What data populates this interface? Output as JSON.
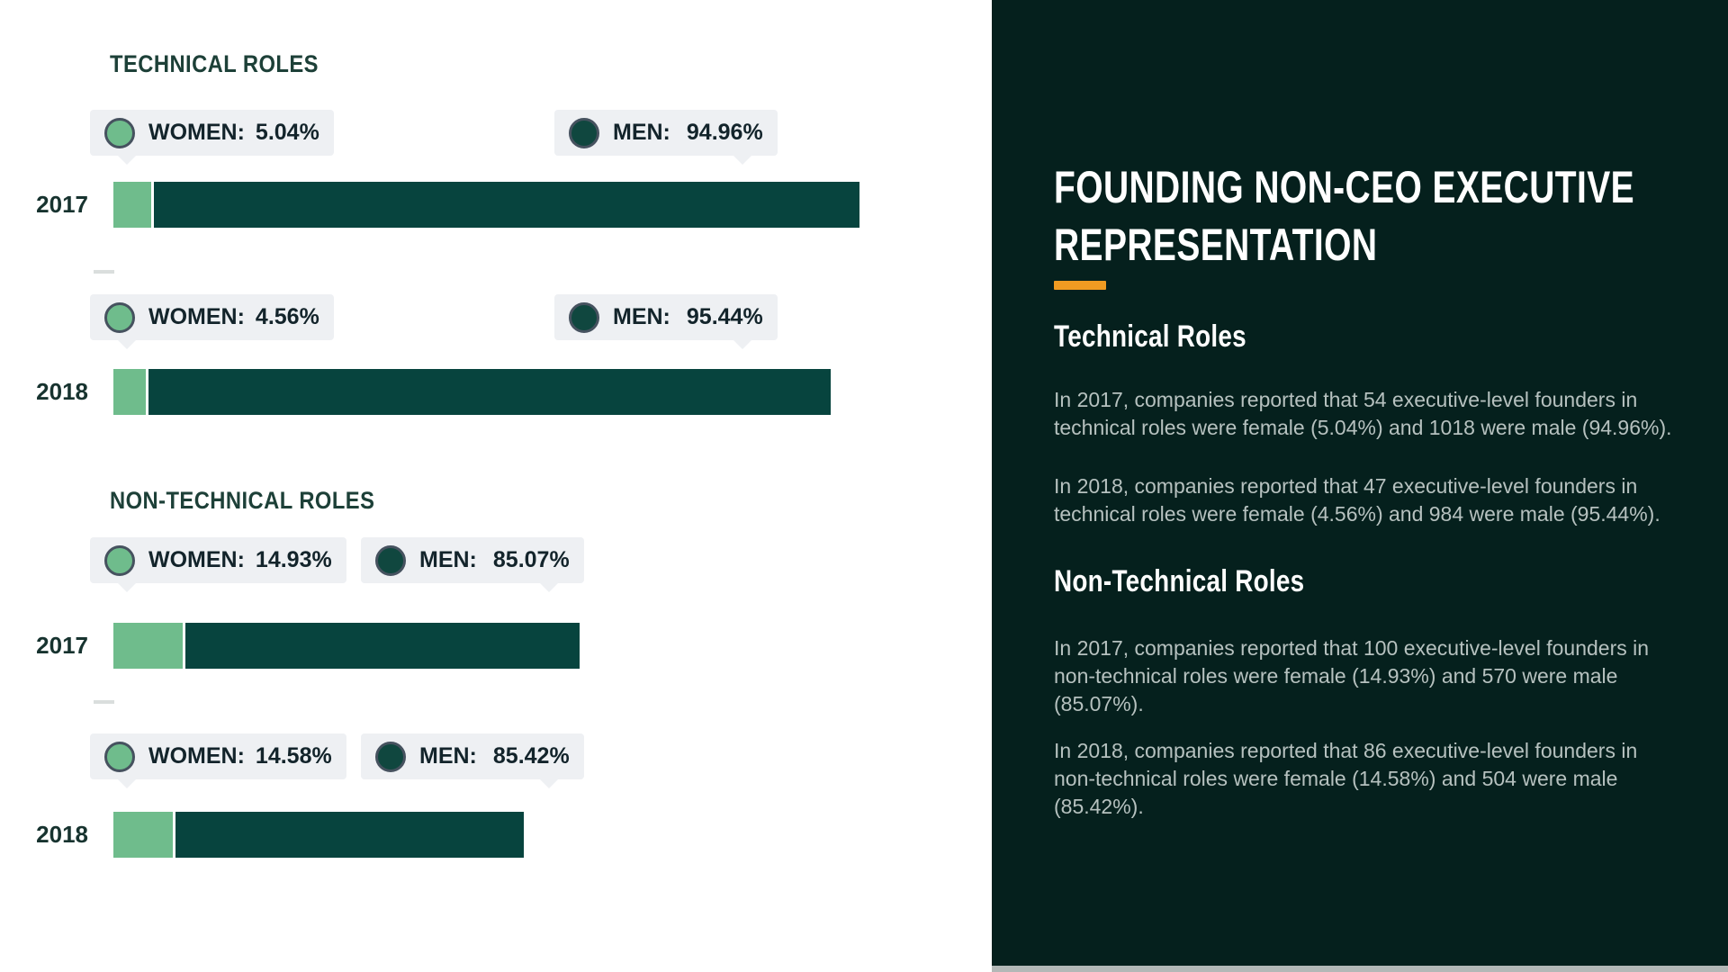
{
  "chart_data": {
    "type": "bar",
    "orientation": "horizontal",
    "stacked": true,
    "title": "FOUNDING NON-CEO EXECUTIVE REPRESENTATION",
    "value_unit": "percent",
    "bar_length_encodes": "relative total founders reported per year",
    "grid": false,
    "legend": {
      "women_label": "WOMEN:",
      "men_label": "MEN:",
      "position": "tooltip-above-each-bar"
    },
    "colors": {
      "women": "#6fbc8c",
      "men": "#07443e",
      "badge_background": "#eef0f3"
    },
    "sections": [
      {
        "title": "TECHNICAL ROLES",
        "rows": [
          {
            "year": "2017",
            "women_pct": 5.04,
            "men_pct": 94.96,
            "women_count": 54,
            "men_count": 1018,
            "women_value_label": "5.04%",
            "men_value_label": "94.96%"
          },
          {
            "year": "2018",
            "women_pct": 4.56,
            "men_pct": 95.44,
            "women_count": 47,
            "men_count": 984,
            "women_value_label": "4.56%",
            "men_value_label": "95.44%"
          }
        ]
      },
      {
        "title": "NON-TECHNICAL ROLES",
        "rows": [
          {
            "year": "2017",
            "women_pct": 14.93,
            "men_pct": 85.07,
            "women_count": 100,
            "men_count": 570,
            "women_value_label": "14.93%",
            "men_value_label": "85.07%"
          },
          {
            "year": "2018",
            "women_pct": 14.58,
            "men_pct": 85.42,
            "women_count": 86,
            "men_count": 504,
            "women_value_label": "14.58%",
            "men_value_label": "85.42%"
          }
        ]
      }
    ]
  },
  "panel": {
    "background": "#05201d",
    "accent_color": "#f09b22",
    "title": "FOUNDING NON-CEO EXECUTIVE REPRESENTATION",
    "sections": [
      {
        "heading": "Technical Roles",
        "paragraphs": [
          "In 2017, companies reported that 54 executive-level founders in technical roles were female (5.04%) and 1018 were male (94.96%).",
          "In 2018, companies reported that 47 executive-level founders in technical roles were female (4.56%) and 984 were male (95.44%)."
        ]
      },
      {
        "heading": "Non-Technical Roles",
        "paragraphs": [
          "In 2017, companies reported that 100 executive-level founders in non-technical roles were female (14.93%) and 570 were male (85.07%).",
          "In 2018, companies reported that 86 executive-level founders in non-technical roles were female (14.58%) and 504 were male (85.42%)."
        ]
      }
    ]
  }
}
